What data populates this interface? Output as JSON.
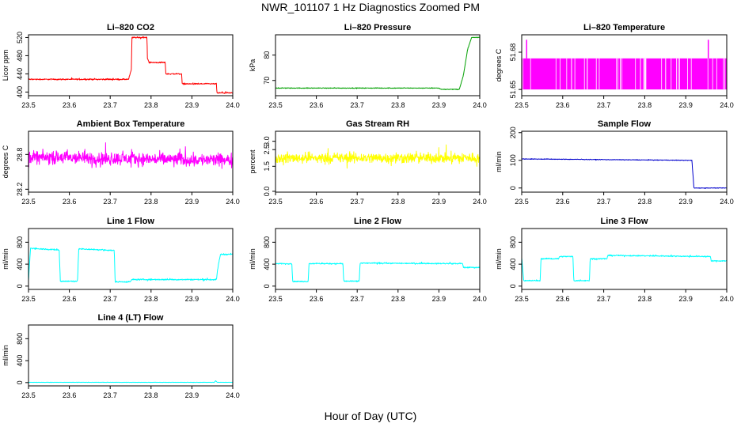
{
  "figure": {
    "title": "NWR_101107  1 Hz Diagnostics Zoomed PM",
    "xlabel": "Hour of Day (UTC)"
  },
  "chart_data": [
    {
      "type": "line",
      "title": "Li–820 CO2",
      "ylabel": "Licor ppm",
      "color": "#ff0000",
      "xlim": [
        23.5,
        24.0
      ],
      "ylim": [
        392,
        526
      ],
      "yticks": [
        400,
        440,
        480,
        520
      ],
      "xticks": [
        23.5,
        23.6,
        23.7,
        23.8,
        23.9,
        24.0
      ],
      "grid": false,
      "x": [
        23.5,
        23.745,
        23.752,
        23.753,
        23.79,
        23.791,
        23.795,
        23.835,
        23.836,
        23.838,
        23.875,
        23.876,
        23.877,
        23.96,
        23.961,
        23.962,
        24.0
      ],
      "y": [
        428,
        428,
        450,
        520,
        520,
        475,
        465,
        465,
        440,
        440,
        440,
        418,
        418,
        418,
        400,
        398,
        398
      ],
      "noise": 2
    },
    {
      "type": "line",
      "title": "Li–820 Pressure",
      "ylabel": "kPa",
      "color": "#00a000",
      "xlim": [
        23.5,
        24.0
      ],
      "ylim": [
        64,
        88
      ],
      "yticks": [
        70,
        80
      ],
      "xticks": [
        23.5,
        23.6,
        23.7,
        23.8,
        23.9,
        24.0
      ],
      "grid": false,
      "x": [
        23.5,
        23.9,
        23.905,
        23.95,
        23.96,
        23.97,
        23.98,
        23.985,
        24.0
      ],
      "y": [
        67,
        67,
        66.5,
        66.5,
        72,
        82,
        87,
        87,
        87
      ],
      "noise": 0.2
    },
    {
      "type": "line",
      "title": "Li–820 Temperature",
      "ylabel": "degrees C",
      "color": "#ff00ff",
      "xlim": [
        23.5,
        24.0
      ],
      "ylim": [
        51.645,
        51.694
      ],
      "yticks": [
        51.65,
        51.68
      ],
      "ytick_labels": [
        "51.65",
        "51.68"
      ],
      "xticks": [
        23.5,
        23.6,
        23.7,
        23.8,
        23.9,
        24.0
      ],
      "grid": false,
      "x": [
        23.5,
        24.0
      ],
      "y": [
        51.65,
        51.65
      ],
      "band": [
        51.65,
        51.675
      ],
      "spikes": [
        {
          "x": 23.512,
          "y": 51.69
        },
        {
          "x": 23.955,
          "y": 51.69
        }
      ],
      "noise": 0
    },
    {
      "type": "line",
      "title": "Ambient Box Temperature",
      "ylabel": "degrees C",
      "color": "#ff00ff",
      "xlim": [
        23.5,
        24.0
      ],
      "ylim": [
        28.15,
        29.2
      ],
      "yticks": [
        28.2,
        28.6,
        28.8
      ],
      "ytick_labels": [
        "28.2",
        "",
        "28.8"
      ],
      "xticks": [
        23.5,
        23.6,
        23.7,
        23.8,
        23.9,
        24.0
      ],
      "grid": false,
      "x": [
        23.5,
        24.0
      ],
      "y": [
        28.75,
        28.7
      ],
      "noise": 0.16
    },
    {
      "type": "line",
      "title": "Gas Stream RH",
      "ylabel": "percent",
      "color": "#ffff00",
      "xlim": [
        23.5,
        24.0
      ],
      "ylim": [
        -0.05,
        3.6
      ],
      "yticks": [
        0.0,
        1.5,
        2.5,
        3.0
      ],
      "ytick_labels": [
        "0.0",
        "1.5",
        "2.5",
        "3.0"
      ],
      "xticks": [
        23.5,
        23.6,
        23.7,
        23.8,
        23.9,
        24.0
      ],
      "grid": false,
      "x": [
        23.5,
        24.0
      ],
      "y": [
        2.0,
        2.0
      ],
      "noise": 0.45
    },
    {
      "type": "line",
      "title": "Sample Flow",
      "ylabel": "ml/min",
      "color": "#0000cc",
      "xlim": [
        23.5,
        24.0
      ],
      "ylim": [
        -15,
        205
      ],
      "yticks": [
        0,
        100,
        200
      ],
      "xticks": [
        23.5,
        23.6,
        23.7,
        23.8,
        23.9,
        24.0
      ],
      "grid": false,
      "x": [
        23.5,
        23.915,
        23.92,
        24.0
      ],
      "y": [
        105,
        100,
        0,
        0
      ],
      "noise": 1.5
    },
    {
      "type": "line",
      "title": "Line 1 Flow",
      "ylabel": "ml/min",
      "color": "#00ffff",
      "xlim": [
        23.5,
        24.0
      ],
      "ylim": [
        -60,
        1050
      ],
      "yticks": [
        0,
        400,
        800
      ],
      "xticks": [
        23.5,
        23.6,
        23.7,
        23.8,
        23.9,
        24.0
      ],
      "grid": false,
      "x": [
        23.5,
        23.505,
        23.575,
        23.578,
        23.62,
        23.623,
        23.71,
        23.712,
        23.75,
        23.752,
        23.96,
        23.965,
        23.97,
        24.0
      ],
      "y": [
        100,
        690,
        660,
        90,
        90,
        680,
        650,
        80,
        80,
        120,
        120,
        400,
        580,
        580
      ],
      "noise": 18
    },
    {
      "type": "line",
      "title": "Line 2 Flow",
      "ylabel": "ml/min",
      "color": "#00ffff",
      "xlim": [
        23.5,
        24.0
      ],
      "ylim": [
        -60,
        1050
      ],
      "yticks": [
        0,
        400,
        800
      ],
      "xticks": [
        23.5,
        23.6,
        23.7,
        23.8,
        23.9,
        24.0
      ],
      "grid": false,
      "x": [
        23.5,
        23.54,
        23.542,
        23.58,
        23.582,
        23.665,
        23.667,
        23.705,
        23.707,
        23.958,
        23.96,
        24.0
      ],
      "y": [
        410,
        410,
        85,
        85,
        410,
        410,
        90,
        90,
        420,
        410,
        340,
        340
      ],
      "noise": 15
    },
    {
      "type": "line",
      "title": "Line 3 Flow",
      "ylabel": "ml/min",
      "color": "#00ffff",
      "xlim": [
        23.5,
        24.0
      ],
      "ylim": [
        -60,
        1050
      ],
      "yticks": [
        0,
        400,
        800
      ],
      "xticks": [
        23.5,
        23.6,
        23.7,
        23.8,
        23.9,
        24.0
      ],
      "grid": false,
      "x": [
        23.5,
        23.505,
        23.545,
        23.547,
        23.59,
        23.592,
        23.625,
        23.627,
        23.665,
        23.667,
        23.708,
        23.71,
        23.96,
        23.962,
        24.0
      ],
      "y": [
        520,
        100,
        100,
        500,
        500,
        540,
        540,
        100,
        100,
        500,
        500,
        560,
        540,
        460,
        460
      ],
      "noise": 15
    },
    {
      "type": "line",
      "title": "Line 4 (LT) Flow",
      "ylabel": "ml/min",
      "color": "#00ffff",
      "xlim": [
        23.5,
        24.0
      ],
      "ylim": [
        -60,
        1050
      ],
      "yticks": [
        0,
        400,
        800
      ],
      "xticks": [
        23.5,
        23.6,
        23.7,
        23.8,
        23.9,
        24.0
      ],
      "grid": false,
      "x": [
        23.5,
        23.955,
        23.958,
        23.962,
        24.0
      ],
      "y": [
        5,
        5,
        35,
        5,
        5
      ],
      "noise": 3
    }
  ]
}
